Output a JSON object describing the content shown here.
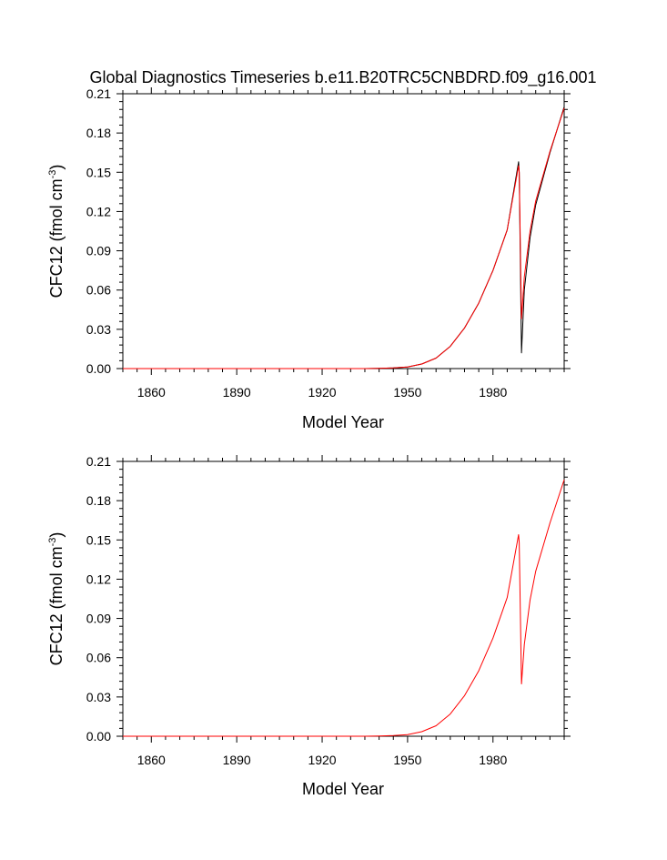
{
  "chart_data": [
    {
      "type": "line",
      "title": "Global Diagnostics Timeseries b.e11.B20TRC5CNBDRD.f09_g16.001",
      "xlabel": "Model Year",
      "ylabel": "CFC12 (fmol cm",
      "ylabel_sup": "-3",
      "ylabel_close": ")",
      "xlim": [
        1850,
        2005
      ],
      "ylim": [
        0,
        0.21
      ],
      "xticks": [
        1860,
        1890,
        1920,
        1950,
        1980
      ],
      "xtick_labels": [
        "1860",
        "1890",
        "1920",
        "1950",
        "1980"
      ],
      "yticks": [
        0,
        0.03,
        0.06,
        0.09,
        0.12,
        0.15,
        0.18,
        0.21
      ],
      "ytick_labels": [
        "0.00",
        "0.03",
        "0.06",
        "0.09",
        "0.12",
        "0.15",
        "0.18",
        "0.21"
      ],
      "grid": false,
      "series": [
        {
          "name": "black",
          "color": "#000000",
          "x": [
            1850,
            1935,
            1940,
            1945,
            1950,
            1955,
            1960,
            1965,
            1970,
            1975,
            1980,
            1985,
            1989,
            1989.2,
            1990,
            1991,
            1993,
            1995,
            2000,
            2005
          ],
          "y": [
            0,
            0,
            0.0002,
            0.0005,
            0.0012,
            0.0035,
            0.008,
            0.017,
            0.031,
            0.05,
            0.075,
            0.106,
            0.158,
            0.15,
            0.012,
            0.06,
            0.1,
            0.125,
            0.165,
            0.2
          ]
        },
        {
          "name": "red",
          "color": "#ff0000",
          "x": [
            1850,
            1935,
            1940,
            1945,
            1950,
            1955,
            1960,
            1965,
            1970,
            1975,
            1980,
            1985,
            1989,
            1989.2,
            1990,
            1991,
            1993,
            1995,
            2000,
            2005
          ],
          "y": [
            0,
            0,
            0.0002,
            0.0005,
            0.0012,
            0.0035,
            0.008,
            0.017,
            0.031,
            0.05,
            0.075,
            0.106,
            0.155,
            0.15,
            0.038,
            0.07,
            0.105,
            0.128,
            0.166,
            0.199
          ]
        }
      ]
    },
    {
      "type": "line",
      "title": "",
      "xlabel": "Model Year",
      "ylabel": "CFC12 (fmol cm",
      "ylabel_sup": "-3",
      "ylabel_close": ")",
      "xlim": [
        1850,
        2005
      ],
      "ylim": [
        0,
        0.21
      ],
      "xticks": [
        1860,
        1890,
        1920,
        1950,
        1980
      ],
      "xtick_labels": [
        "1860",
        "1890",
        "1920",
        "1950",
        "1980"
      ],
      "yticks": [
        0,
        0.03,
        0.06,
        0.09,
        0.12,
        0.15,
        0.18,
        0.21
      ],
      "ytick_labels": [
        "0.00",
        "0.03",
        "0.06",
        "0.09",
        "0.12",
        "0.15",
        "0.18",
        "0.21"
      ],
      "grid": false,
      "series": [
        {
          "name": "red",
          "color": "#ff0000",
          "x": [
            1850,
            1935,
            1940,
            1945,
            1950,
            1955,
            1960,
            1965,
            1970,
            1975,
            1980,
            1985,
            1989,
            1989.2,
            1990,
            1991,
            1993,
            1995,
            2000,
            2005
          ],
          "y": [
            0,
            0,
            0.0002,
            0.0005,
            0.0012,
            0.0035,
            0.008,
            0.017,
            0.031,
            0.05,
            0.075,
            0.106,
            0.154,
            0.148,
            0.04,
            0.07,
            0.104,
            0.126,
            0.163,
            0.196
          ]
        }
      ]
    }
  ]
}
